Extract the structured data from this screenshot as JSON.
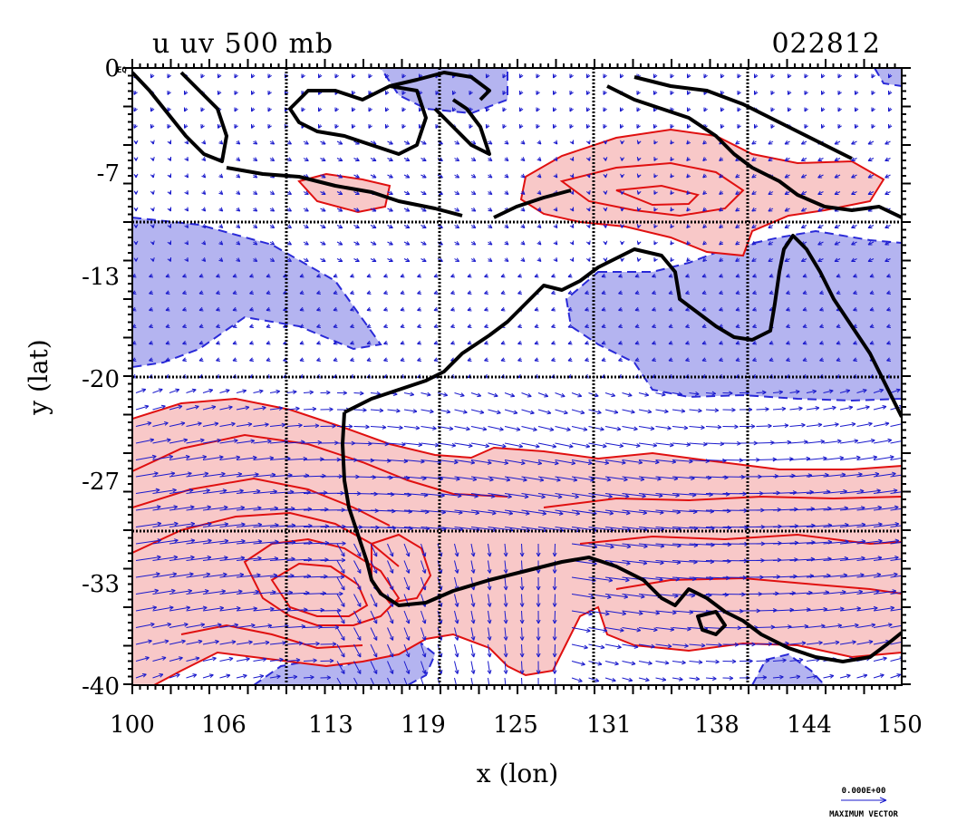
{
  "figure": {
    "title_left": "u uv 500 mb",
    "title_right": "022812",
    "xlabel": "x (lon)",
    "ylabel": "y (lat)",
    "x_ticks": [
      "100",
      "106",
      "113",
      "119",
      "125",
      "131",
      "138",
      "144",
      "150"
    ],
    "y_ticks": [
      "0",
      "-7",
      "-13",
      "-20",
      "-27",
      "-33",
      "-40"
    ],
    "corner_label": "EQ",
    "vector_legend_value": "0.000E+00",
    "vector_legend_label": "MAXIMUM VECTOR"
  },
  "map": {
    "lon_range": [
      100,
      150
    ],
    "lat_range": [
      -40,
      0
    ],
    "grid_lines_lon": [
      110,
      120,
      130,
      140
    ],
    "grid_lines_lat": [
      -10,
      -20,
      -30
    ],
    "colors": {
      "positive_fill": "#f8c8c8",
      "positive_contour": "#e01010",
      "negative_fill": "#b4b4f0",
      "negative_contour": "#2a2ad8",
      "wind_vector": "#1a1acc",
      "coastline": "#000000",
      "grid": "#000000"
    }
  }
}
